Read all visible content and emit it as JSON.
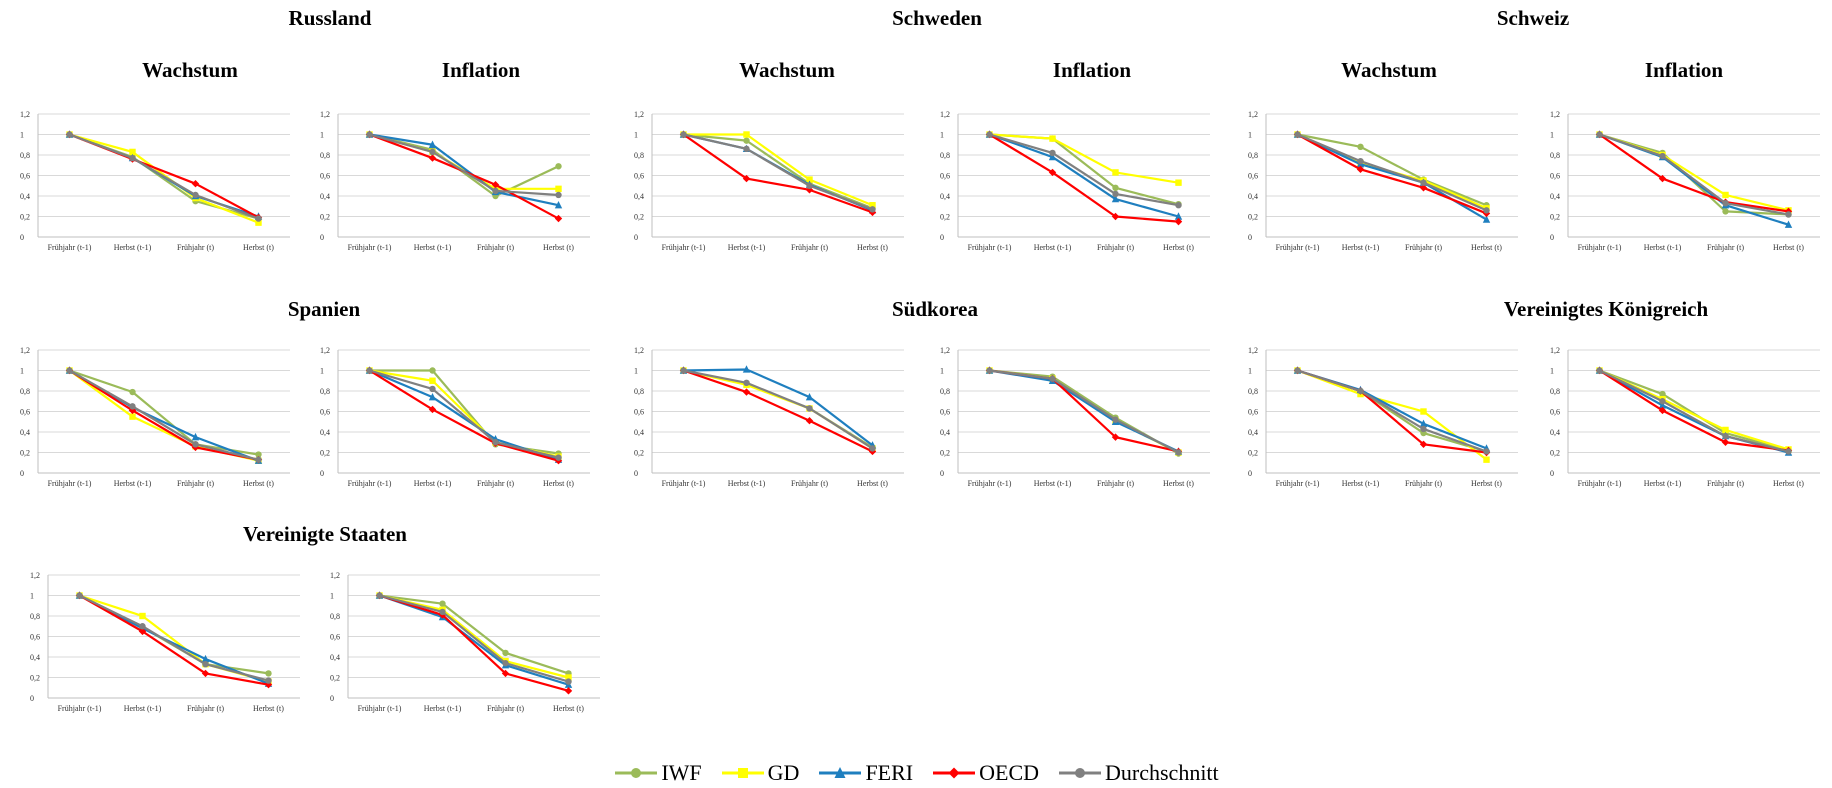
{
  "headings": {
    "russland": "Russland",
    "schweden": "Schweden",
    "schweiz": "Schweiz",
    "spanien": "Spanien",
    "suedkorea": "Südkorea",
    "vk": "Vereinigtes Königreich",
    "usa": "Vereinigte Staaten",
    "wachstum": "Wachstum",
    "inflation": "Inflation"
  },
  "legend": [
    {
      "name": "IWF",
      "color": "#9bbb59",
      "marker": "circle"
    },
    {
      "name": "GD",
      "color": "#ffff00",
      "marker": "square"
    },
    {
      "name": "FERI",
      "color": "#1f7fbf",
      "marker": "triangle"
    },
    {
      "name": "OECD",
      "color": "#ff0000",
      "marker": "diamond"
    },
    {
      "name": "Durchschnitt",
      "color": "#808080",
      "marker": "circle"
    }
  ],
  "chart_data": [
    {
      "id": "ru-wachstum",
      "type": "line",
      "categories": [
        "Frühjahr (t-1)",
        "Herbst (t-1)",
        "Frühjahr (t)",
        "Herbst (t)"
      ],
      "ylim": [
        0,
        1.2
      ],
      "yticks": [
        "0",
        "0,2",
        "0,4",
        "0,6",
        "0,8",
        "1",
        "1,2"
      ],
      "series": [
        {
          "name": "IWF",
          "values": [
            1,
            0.78,
            0.35,
            0.18
          ]
        },
        {
          "name": "GD",
          "values": [
            1,
            0.83,
            0.38,
            0.14
          ]
        },
        {
          "name": "FERI",
          "values": [
            1,
            0.77,
            0.4,
            0.2
          ]
        },
        {
          "name": "OECD",
          "values": [
            1,
            0.76,
            0.52,
            0.19
          ]
        },
        {
          "name": "Durchschnitt",
          "values": [
            1,
            0.77,
            0.41,
            0.18
          ]
        }
      ]
    },
    {
      "id": "ru-inflation",
      "type": "line",
      "categories": [
        "Frühjahr (t-1)",
        "Herbst (t-1)",
        "Frühjahr (t)",
        "Herbst (t)"
      ],
      "ylim": [
        0,
        1.2
      ],
      "yticks": [
        "0",
        "0,2",
        "0,4",
        "0,6",
        "0,8",
        "1",
        "1,2"
      ],
      "series": [
        {
          "name": "IWF",
          "values": [
            1,
            0.85,
            0.4,
            0.69
          ]
        },
        {
          "name": "GD",
          "values": [
            1,
            0.83,
            0.47,
            0.47
          ]
        },
        {
          "name": "FERI",
          "values": [
            1,
            0.9,
            0.44,
            0.31
          ]
        },
        {
          "name": "OECD",
          "values": [
            1,
            0.77,
            0.51,
            0.18
          ]
        },
        {
          "name": "Durchschnitt",
          "values": [
            1,
            0.83,
            0.45,
            0.41
          ]
        }
      ]
    },
    {
      "id": "se-wachstum",
      "type": "line",
      "categories": [
        "Frühjahr (t-1)",
        "Herbst (t-1)",
        "Frühjahr (t)",
        "Herbst (t)"
      ],
      "ylim": [
        0,
        1.2
      ],
      "yticks": [
        "0",
        "0,2",
        "0,4",
        "0,6",
        "0,8",
        "1",
        "1,2"
      ],
      "series": [
        {
          "name": "IWF",
          "values": [
            1,
            0.94,
            0.52,
            0.28
          ]
        },
        {
          "name": "GD",
          "values": [
            1,
            1.0,
            0.56,
            0.31
          ]
        },
        {
          "name": "FERI",
          "values": [
            1,
            0.86,
            0.51,
            0.26
          ]
        },
        {
          "name": "OECD",
          "values": [
            1,
            0.57,
            0.46,
            0.24
          ]
        },
        {
          "name": "Durchschnitt",
          "values": [
            1,
            0.86,
            0.5,
            0.27
          ]
        }
      ]
    },
    {
      "id": "se-inflation",
      "type": "line",
      "categories": [
        "Frühjahr (t-1)",
        "Herbst (t-1)",
        "Frühjahr (t)",
        "Herbst (t)"
      ],
      "ylim": [
        0,
        1.2
      ],
      "yticks": [
        "0",
        "0,2",
        "0,4",
        "0,6",
        "0,8",
        "1",
        "1,2"
      ],
      "series": [
        {
          "name": "IWF",
          "values": [
            1,
            0.96,
            0.48,
            0.32
          ]
        },
        {
          "name": "GD",
          "values": [
            1,
            0.96,
            0.63,
            0.53
          ]
        },
        {
          "name": "FERI",
          "values": [
            1,
            0.78,
            0.37,
            0.2
          ]
        },
        {
          "name": "OECD",
          "values": [
            1,
            0.63,
            0.2,
            0.15
          ]
        },
        {
          "name": "Durchschnitt",
          "values": [
            1,
            0.82,
            0.42,
            0.31
          ]
        }
      ]
    },
    {
      "id": "ch-wachstum",
      "type": "line",
      "categories": [
        "Frühjahr (t-1)",
        "Herbst (t-1)",
        "Frühjahr (t)",
        "Herbst (t)"
      ],
      "ylim": [
        0,
        1.2
      ],
      "yticks": [
        "0",
        "0,2",
        "0,4",
        "0,6",
        "0,8",
        "1",
        "1,2"
      ],
      "series": [
        {
          "name": "IWF",
          "values": [
            1,
            0.88,
            0.56,
            0.31
          ]
        },
        {
          "name": "GD",
          "values": [
            1,
            0.72,
            0.55,
            0.28
          ]
        },
        {
          "name": "FERI",
          "values": [
            1,
            0.71,
            0.53,
            0.17
          ]
        },
        {
          "name": "OECD",
          "values": [
            1,
            0.66,
            0.48,
            0.23
          ]
        },
        {
          "name": "Durchschnitt",
          "values": [
            1,
            0.74,
            0.53,
            0.26
          ]
        }
      ]
    },
    {
      "id": "ch-inflation",
      "type": "line",
      "categories": [
        "Frühjahr (t-1)",
        "Herbst (t-1)",
        "Frühjahr (t)",
        "Herbst (t)"
      ],
      "ylim": [
        0,
        1.2
      ],
      "yticks": [
        "0",
        "0,2",
        "0,4",
        "0,6",
        "0,8",
        "1",
        "1,2"
      ],
      "series": [
        {
          "name": "IWF",
          "values": [
            1,
            0.82,
            0.25,
            0.22
          ]
        },
        {
          "name": "GD",
          "values": [
            1,
            0.8,
            0.41,
            0.26
          ]
        },
        {
          "name": "FERI",
          "values": [
            1,
            0.78,
            0.31,
            0.12
          ]
        },
        {
          "name": "OECD",
          "values": [
            1,
            0.57,
            0.34,
            0.25
          ]
        },
        {
          "name": "Durchschnitt",
          "values": [
            1,
            0.79,
            0.33,
            0.22
          ]
        }
      ]
    },
    {
      "id": "es-wachstum",
      "type": "line",
      "categories": [
        "Frühjahr (t-1)",
        "Herbst (t-1)",
        "Frühjahr (t)",
        "Herbst (t)"
      ],
      "ylim": [
        0,
        1.2
      ],
      "yticks": [
        "0",
        "0,2",
        "0,4",
        "0,6",
        "0,8",
        "1",
        "1,2"
      ],
      "series": [
        {
          "name": "IWF",
          "values": [
            1,
            0.79,
            0.28,
            0.18
          ]
        },
        {
          "name": "GD",
          "values": [
            1,
            0.55,
            0.26,
            0.12
          ]
        },
        {
          "name": "FERI",
          "values": [
            1,
            0.64,
            0.35,
            0.12
          ]
        },
        {
          "name": "OECD",
          "values": [
            1,
            0.61,
            0.25,
            0.13
          ]
        },
        {
          "name": "Durchschnitt",
          "values": [
            1,
            0.65,
            0.28,
            0.13
          ]
        }
      ]
    },
    {
      "id": "es-inflation",
      "type": "line",
      "categories": [
        "Frühjahr (t-1)",
        "Herbst (t-1)",
        "Frühjahr (t)",
        "Herbst (t)"
      ],
      "ylim": [
        0,
        1.2
      ],
      "yticks": [
        "0",
        "0,2",
        "0,4",
        "0,6",
        "0,8",
        "1",
        "1,2"
      ],
      "series": [
        {
          "name": "IWF",
          "values": [
            1,
            1.0,
            0.28,
            0.19
          ]
        },
        {
          "name": "GD",
          "values": [
            1,
            0.9,
            0.3,
            0.16
          ]
        },
        {
          "name": "FERI",
          "values": [
            1,
            0.74,
            0.33,
            0.13
          ]
        },
        {
          "name": "OECD",
          "values": [
            1,
            0.62,
            0.29,
            0.12
          ]
        },
        {
          "name": "Durchschnitt",
          "values": [
            1,
            0.82,
            0.3,
            0.15
          ]
        }
      ]
    },
    {
      "id": "kr-wachstum",
      "type": "line",
      "categories": [
        "Frühjahr (t-1)",
        "Herbst (t-1)",
        "Frühjahr (t)",
        "Herbst (t)"
      ],
      "ylim": [
        0,
        1.2
      ],
      "yticks": [
        "0",
        "0,2",
        "0,4",
        "0,6",
        "0,8",
        "1",
        "1,2"
      ],
      "series": [
        {
          "name": "IWF",
          "values": [
            1,
            0.87,
            0.63,
            0.25
          ]
        },
        {
          "name": "GD",
          "values": [
            1,
            0.86,
            0.63,
            0.24
          ]
        },
        {
          "name": "FERI",
          "values": [
            1,
            1.01,
            0.74,
            0.27
          ]
        },
        {
          "name": "OECD",
          "values": [
            1,
            0.79,
            0.51,
            0.21
          ]
        },
        {
          "name": "Durchschnitt",
          "values": [
            1,
            0.88,
            0.63,
            0.24
          ]
        }
      ]
    },
    {
      "id": "kr-inflation",
      "type": "line",
      "categories": [
        "Frühjahr (t-1)",
        "Herbst (t-1)",
        "Frühjahr (t)",
        "Herbst (t)"
      ],
      "ylim": [
        0,
        1.2
      ],
      "yticks": [
        "0",
        "0,2",
        "0,4",
        "0,6",
        "0,8",
        "1",
        "1,2"
      ],
      "series": [
        {
          "name": "IWF",
          "values": [
            1,
            0.94,
            0.54,
            0.19
          ]
        },
        {
          "name": "GD",
          "values": [
            1,
            0.92,
            0.51,
            0.2
          ]
        },
        {
          "name": "FERI",
          "values": [
            1,
            0.9,
            0.5,
            0.21
          ]
        },
        {
          "name": "OECD",
          "values": [
            1,
            0.92,
            0.35,
            0.21
          ]
        },
        {
          "name": "Durchschnitt",
          "values": [
            1,
            0.92,
            0.52,
            0.2
          ]
        }
      ]
    },
    {
      "id": "uk-wachstum",
      "type": "line",
      "categories": [
        "Frühjahr (t-1)",
        "Herbst (t-1)",
        "Frühjahr (t)",
        "Herbst (t)"
      ],
      "ylim": [
        0,
        1.2
      ],
      "yticks": [
        "0",
        "0,2",
        "0,4",
        "0,6",
        "0,8",
        "1",
        "1,2"
      ],
      "series": [
        {
          "name": "IWF",
          "values": [
            1,
            0.8,
            0.39,
            0.21
          ]
        },
        {
          "name": "GD",
          "values": [
            1,
            0.77,
            0.6,
            0.13
          ]
        },
        {
          "name": "FERI",
          "values": [
            1,
            0.81,
            0.48,
            0.24
          ]
        },
        {
          "name": "OECD",
          "values": [
            1,
            0.8,
            0.28,
            0.2
          ]
        },
        {
          "name": "Durchschnitt",
          "values": [
            1,
            0.8,
            0.43,
            0.21
          ]
        }
      ]
    },
    {
      "id": "uk-inflation",
      "type": "line",
      "categories": [
        "Frühjahr (t-1)",
        "Herbst (t-1)",
        "Frühjahr (t)",
        "Herbst (t)"
      ],
      "ylim": [
        0,
        1.2
      ],
      "yticks": [
        "0",
        "0,2",
        "0,4",
        "0,6",
        "0,8",
        "1",
        "1,2"
      ],
      "series": [
        {
          "name": "IWF",
          "values": [
            1,
            0.77,
            0.39,
            0.22
          ]
        },
        {
          "name": "GD",
          "values": [
            1,
            0.72,
            0.42,
            0.23
          ]
        },
        {
          "name": "FERI",
          "values": [
            1,
            0.66,
            0.36,
            0.2
          ]
        },
        {
          "name": "OECD",
          "values": [
            1,
            0.61,
            0.3,
            0.22
          ]
        },
        {
          "name": "Durchschnitt",
          "values": [
            1,
            0.7,
            0.36,
            0.21
          ]
        }
      ]
    },
    {
      "id": "us-wachstum",
      "type": "line",
      "categories": [
        "Frühjahr (t-1)",
        "Herbst (t-1)",
        "Frühjahr (t)",
        "Herbst (t)"
      ],
      "ylim": [
        0,
        1.2
      ],
      "yticks": [
        "0",
        "0,2",
        "0,4",
        "0,6",
        "0,8",
        "1",
        "1,2"
      ],
      "series": [
        {
          "name": "IWF",
          "values": [
            1,
            0.69,
            0.33,
            0.24
          ]
        },
        {
          "name": "GD",
          "values": [
            1,
            0.8,
            0.33,
            0.16
          ]
        },
        {
          "name": "FERI",
          "values": [
            1,
            0.68,
            0.38,
            0.14
          ]
        },
        {
          "name": "OECD",
          "values": [
            1,
            0.65,
            0.24,
            0.13
          ]
        },
        {
          "name": "Durchschnitt",
          "values": [
            1,
            0.7,
            0.33,
            0.17
          ]
        }
      ]
    },
    {
      "id": "us-inflation",
      "type": "line",
      "categories": [
        "Frühjahr (t-1)",
        "Herbst (t-1)",
        "Frühjahr (t)",
        "Herbst (t)"
      ],
      "ylim": [
        0,
        1.2
      ],
      "yticks": [
        "0",
        "0,2",
        "0,4",
        "0,6",
        "0,8",
        "1",
        "1,2"
      ],
      "series": [
        {
          "name": "IWF",
          "values": [
            1,
            0.92,
            0.44,
            0.24
          ]
        },
        {
          "name": "GD",
          "values": [
            1,
            0.86,
            0.36,
            0.2
          ]
        },
        {
          "name": "FERI",
          "values": [
            1,
            0.79,
            0.32,
            0.13
          ]
        },
        {
          "name": "OECD",
          "values": [
            1,
            0.81,
            0.24,
            0.07
          ]
        },
        {
          "name": "Durchschnitt",
          "values": [
            1,
            0.84,
            0.34,
            0.16
          ]
        }
      ]
    }
  ]
}
